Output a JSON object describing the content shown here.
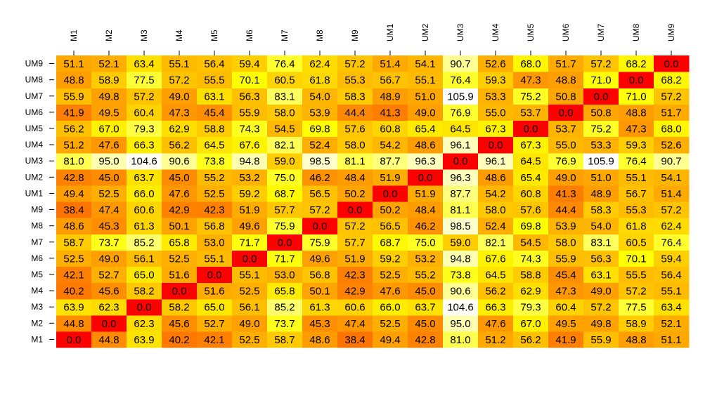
{
  "chart_data": {
    "type": "heatmap",
    "x_labels": [
      "M1",
      "M2",
      "M3",
      "M4",
      "M5",
      "M6",
      "M7",
      "M8",
      "M9",
      "UM1",
      "UM2",
      "UM3",
      "UM4",
      "UM5",
      "UM6",
      "UM7",
      "UM8",
      "UM9"
    ],
    "y_labels": [
      "M1",
      "M2",
      "M3",
      "M4",
      "M5",
      "M6",
      "M7",
      "M8",
      "M9",
      "UM1",
      "UM2",
      "UM3",
      "UM4",
      "UM5",
      "UM6",
      "UM7",
      "UM8",
      "UM9"
    ],
    "values": [
      [
        0.0,
        44.8,
        63.9,
        40.2,
        42.1,
        52.5,
        58.7,
        48.6,
        38.4,
        49.4,
        42.8,
        81.0,
        51.2,
        56.2,
        41.9,
        55.9,
        48.8,
        51.1
      ],
      [
        44.8,
        0.0,
        62.3,
        45.6,
        52.7,
        49.0,
        73.7,
        45.3,
        47.4,
        52.5,
        45.0,
        95.0,
        47.6,
        67.0,
        49.5,
        49.8,
        58.9,
        52.1
      ],
      [
        63.9,
        62.3,
        0.0,
        58.2,
        65.0,
        56.1,
        85.2,
        61.3,
        60.6,
        66.0,
        63.7,
        104.6,
        66.3,
        79.3,
        60.4,
        57.2,
        77.5,
        63.4
      ],
      [
        40.2,
        45.6,
        58.2,
        0.0,
        51.6,
        52.5,
        65.8,
        50.1,
        42.9,
        47.6,
        45.0,
        90.6,
        56.2,
        62.9,
        47.3,
        49.0,
        57.2,
        55.1
      ],
      [
        42.1,
        52.7,
        65.0,
        51.6,
        0.0,
        55.1,
        53.0,
        56.8,
        42.3,
        52.5,
        55.2,
        73.8,
        64.5,
        58.8,
        45.4,
        63.1,
        55.5,
        56.4
      ],
      [
        52.5,
        49.0,
        56.1,
        52.5,
        55.1,
        0.0,
        71.7,
        49.6,
        51.9,
        59.2,
        53.2,
        94.8,
        67.6,
        74.3,
        55.9,
        56.3,
        70.1,
        59.4
      ],
      [
        58.7,
        73.7,
        85.2,
        65.8,
        53.0,
        71.7,
        0.0,
        75.9,
        57.7,
        68.7,
        75.0,
        59.0,
        82.1,
        54.5,
        58.0,
        83.1,
        60.5,
        76.4
      ],
      [
        48.6,
        45.3,
        61.3,
        50.1,
        56.8,
        49.6,
        75.9,
        0.0,
        57.2,
        56.5,
        46.2,
        98.5,
        52.4,
        69.8,
        53.9,
        54.0,
        61.8,
        62.4
      ],
      [
        38.4,
        47.4,
        60.6,
        42.9,
        42.3,
        51.9,
        57.7,
        57.2,
        0.0,
        50.2,
        48.4,
        81.1,
        58.0,
        57.6,
        44.4,
        58.3,
        55.3,
        57.2
      ],
      [
        49.4,
        52.5,
        66.0,
        47.6,
        52.5,
        59.2,
        68.7,
        56.5,
        50.2,
        0.0,
        51.9,
        87.7,
        54.2,
        60.8,
        41.3,
        48.9,
        56.7,
        51.4
      ],
      [
        42.8,
        45.0,
        63.7,
        45.0,
        55.2,
        53.2,
        75.0,
        46.2,
        48.4,
        51.9,
        0.0,
        96.3,
        48.6,
        65.4,
        49.0,
        51.0,
        55.1,
        54.1
      ],
      [
        81.0,
        95.0,
        104.6,
        90.6,
        73.8,
        94.8,
        59.0,
        98.5,
        81.1,
        87.7,
        96.3,
        0.0,
        96.1,
        64.5,
        76.9,
        105.9,
        76.4,
        90.7
      ],
      [
        51.2,
        47.6,
        66.3,
        56.2,
        64.5,
        67.6,
        82.1,
        52.4,
        58.0,
        54.2,
        48.6,
        96.1,
        0.0,
        67.3,
        55.0,
        53.3,
        59.3,
        52.6
      ],
      [
        56.2,
        67.0,
        79.3,
        62.9,
        58.8,
        74.3,
        54.5,
        69.8,
        57.6,
        60.8,
        65.4,
        64.5,
        67.3,
        0.0,
        53.7,
        75.2,
        47.3,
        68.0
      ],
      [
        41.9,
        49.5,
        60.4,
        47.3,
        45.4,
        55.9,
        58.0,
        53.9,
        44.4,
        41.3,
        49.0,
        76.9,
        55.0,
        53.7,
        0.0,
        50.8,
        48.8,
        51.7
      ],
      [
        55.9,
        49.8,
        57.2,
        49.0,
        63.1,
        56.3,
        83.1,
        54.0,
        58.3,
        48.9,
        51.0,
        105.9,
        53.3,
        75.2,
        50.8,
        0.0,
        71.0,
        57.2
      ],
      [
        48.8,
        58.9,
        77.5,
        57.2,
        55.5,
        70.1,
        60.5,
        61.8,
        55.3,
        56.7,
        55.1,
        76.4,
        59.3,
        47.3,
        48.8,
        71.0,
        0.0,
        68.2
      ],
      [
        51.1,
        52.1,
        63.4,
        55.1,
        56.4,
        59.4,
        76.4,
        62.4,
        57.2,
        51.4,
        54.1,
        90.7,
        52.6,
        68.0,
        51.7,
        57.2,
        68.2,
        0.0
      ]
    ],
    "color_scale": "heat (red → orange → yellow → white)",
    "colors": [
      "#ff0000",
      "#ff8000",
      "#ffff00",
      "#ffffff"
    ],
    "title": "",
    "xlabel": "",
    "ylabel": "",
    "legend": "none",
    "grid": false
  }
}
